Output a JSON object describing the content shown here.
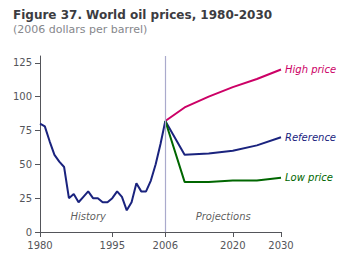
{
  "chart_data": {
    "type": "line",
    "title": "Figure 37. World oil prices, 1980-2030",
    "subtitle": "(2006 dollars per barrel)",
    "series": [
      {
        "x": [
          1980,
          1981,
          1982,
          1983,
          1984,
          1985,
          1986,
          1987,
          1988,
          1989,
          1990,
          1991,
          1992,
          1993,
          1994,
          1995,
          1996,
          1997,
          1998,
          1999,
          2000,
          2001,
          2002,
          2003,
          2004,
          2005,
          2006
        ],
        "values": [
          80,
          78,
          67,
          57,
          52,
          48,
          25,
          28,
          22,
          26,
          30,
          25,
          25,
          22,
          22,
          25,
          30,
          26,
          16,
          22,
          36,
          30,
          30,
          38,
          50,
          65,
          82
        ],
        "color": "#1a237e"
      },
      {
        "name": "High price",
        "x": [
          2006,
          2010,
          2015,
          2020,
          2025,
          2030
        ],
        "values": [
          82,
          92,
          100,
          107,
          113,
          120
        ],
        "color": "#cc0066"
      },
      {
        "name": "Reference",
        "x": [
          2006,
          2010,
          2015,
          2020,
          2025,
          2030
        ],
        "values": [
          82,
          57,
          58,
          60,
          64,
          70
        ],
        "color": "#1a237e"
      },
      {
        "name": "Low price",
        "x": [
          2006,
          2010,
          2015,
          2020,
          2025,
          2030
        ],
        "values": [
          82,
          37,
          37,
          38,
          38,
          40
        ],
        "color": "#006600"
      }
    ],
    "xlim": [
      1980,
      2030
    ],
    "ylim": [
      0,
      130
    ],
    "xticks": [
      1980,
      1995,
      2006,
      2020,
      2030
    ],
    "yticks": [
      0,
      25,
      50,
      75,
      100,
      125
    ],
    "grid": false,
    "vlines": [
      2006
    ],
    "annotations": [
      {
        "text": "History",
        "x": 1990,
        "y": 8
      },
      {
        "text": "Projections",
        "x": 2018,
        "y": 8
      }
    ]
  }
}
